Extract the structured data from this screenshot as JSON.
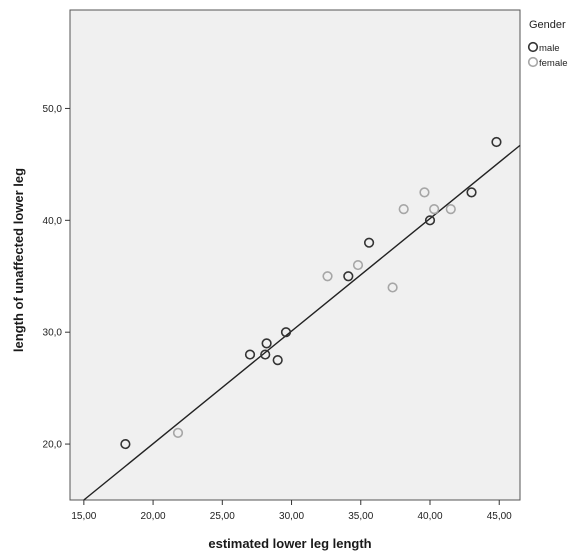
{
  "chart_data": {
    "type": "scatter",
    "title": "",
    "xlabel": "estimated lower leg length",
    "ylabel": "length of unaffected lower leg",
    "xlim": [
      14.0,
      46.5
    ],
    "ylim": [
      15.0,
      58.8
    ],
    "xticks": [
      "15,00",
      "20,00",
      "25,00",
      "30,00",
      "35,00",
      "40,00",
      "45,00"
    ],
    "xtick_values": [
      15,
      20,
      25,
      30,
      35,
      40,
      45
    ],
    "yticks": [
      "20,0",
      "30,0",
      "40,0",
      "50,0"
    ],
    "ytick_values": [
      20,
      30,
      40,
      50
    ],
    "grid": false,
    "background": "#f0f0f0",
    "legend": {
      "title": "Gender",
      "placement": "top-right",
      "entries": [
        "male",
        "female"
      ]
    },
    "series": [
      {
        "name": "male",
        "color": "#333333",
        "points": [
          [
            18.0,
            20.0
          ],
          [
            27.0,
            28.0
          ],
          [
            28.1,
            28.0
          ],
          [
            28.2,
            29.0
          ],
          [
            29.0,
            27.5
          ],
          [
            29.6,
            30.0
          ],
          [
            34.1,
            35.0
          ],
          [
            35.6,
            38.0
          ],
          [
            40.0,
            40.0
          ],
          [
            43.0,
            42.5
          ],
          [
            44.8,
            47.0
          ]
        ]
      },
      {
        "name": "female",
        "color": "#a6a6a6",
        "points": [
          [
            21.8,
            21.0
          ],
          [
            32.6,
            35.0
          ],
          [
            34.8,
            36.0
          ],
          [
            37.3,
            34.0
          ],
          [
            38.1,
            41.0
          ],
          [
            39.6,
            42.5
          ],
          [
            40.3,
            41.0
          ],
          [
            41.5,
            41.0
          ]
        ]
      }
    ],
    "fit_line": {
      "color": "#222222",
      "points": [
        [
          15.0,
          15.0
        ],
        [
          46.5,
          46.7
        ]
      ]
    }
  }
}
